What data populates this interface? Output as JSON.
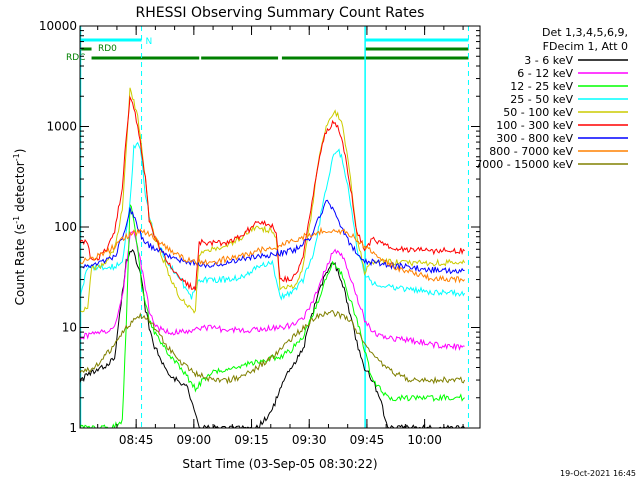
{
  "chart_data": {
    "type": "line",
    "title": "RHESSI Observing Summary Count Rates",
    "xlabel": "Start Time (03-Sep-05 08:30:22)",
    "ylabel": "Count Rate (s⁻¹ detector⁻¹)",
    "ylabel_main": "Count Rate (s",
    "ylabel_sup1": "-1",
    "ylabel_mid": " detector",
    "ylabel_sup2": "-1",
    "ylabel_end": ")",
    "yscale": "log",
    "ylim": [
      1,
      10000
    ],
    "xlim_minutes": [
      0,
      104
    ],
    "x_unit": "minutes after 08:30:22",
    "x_ticks": [
      {
        "label": "08:45",
        "value": 14.6
      },
      {
        "label": "09:00",
        "value": 29.6
      },
      {
        "label": "09:15",
        "value": 44.6
      },
      {
        "label": "09:30",
        "value": 59.6
      },
      {
        "label": "09:45",
        "value": 74.6
      },
      {
        "label": "10:00",
        "value": 89.6
      }
    ],
    "y_ticks": [
      {
        "label": "1",
        "value": 1
      },
      {
        "label": "10",
        "value": 10
      },
      {
        "label": "100",
        "value": 100
      },
      {
        "label": "1000",
        "value": 1000
      },
      {
        "label": "10000",
        "value": 10000
      }
    ],
    "legend_header": [
      "Det 1,3,4,5,6,9,",
      "FDecim 1, Att 0"
    ],
    "legend_position": "right",
    "timestamp": "19-Oct-2021 16:45",
    "flags": [
      {
        "name": "N",
        "color": "#00ffff",
        "segments": [
          [
            0,
            16
          ],
          [
            74,
            101
          ]
        ]
      },
      {
        "name": "RD0",
        "color": "#008000",
        "segments": [
          [
            0,
            3
          ],
          [
            74,
            101
          ]
        ]
      },
      {
        "name": "RDC",
        "color": "#008000",
        "segments": [
          [
            3,
            31
          ],
          [
            31.5,
            51.5
          ],
          [
            52.5,
            74
          ],
          [
            74,
            101
          ]
        ]
      }
    ],
    "vlines_solid": [
      0,
      74
    ],
    "vlines_dashed": [
      16,
      101
    ],
    "series": [
      {
        "name": "3 - 6 keV",
        "color": "#000000",
        "x": [
          0,
          3,
          6,
          9,
          12,
          13,
          14,
          15,
          16,
          17,
          19,
          22,
          25,
          28,
          31,
          34,
          38,
          42,
          46,
          50,
          52,
          55,
          58,
          60,
          62,
          64,
          66,
          68,
          70,
          72,
          74,
          76,
          78,
          80,
          84,
          88,
          92,
          96,
          100
        ],
        "y": [
          3,
          3.5,
          4,
          5,
          45,
          60,
          55,
          40,
          30,
          15,
          7,
          4,
          3,
          2.5,
          1,
          1,
          1,
          1,
          1,
          1.5,
          2.5,
          4,
          6,
          12,
          22,
          35,
          45,
          30,
          15,
          7,
          4,
          3,
          2,
          1,
          1,
          1,
          1,
          1,
          1
        ]
      },
      {
        "name": "6 - 12 keV",
        "color": "#ff00ff",
        "x": [
          0,
          3,
          6,
          9,
          11,
          13,
          14,
          16,
          18,
          20,
          24,
          28,
          30,
          34,
          38,
          42,
          46,
          50,
          52,
          55,
          58,
          61,
          64,
          66,
          68,
          70,
          72,
          74,
          76,
          80,
          85,
          90,
          95,
          100
        ],
        "y": [
          8,
          8.5,
          9,
          10,
          20,
          85,
          90,
          40,
          15,
          10,
          9,
          9,
          10,
          10,
          9.5,
          9.5,
          9.5,
          10,
          10,
          10.5,
          12,
          20,
          40,
          60,
          55,
          35,
          20,
          12,
          9,
          8,
          7.5,
          7,
          6.5,
          6.5
        ]
      },
      {
        "name": "12 - 25 keV",
        "color": "#00ff00",
        "x": [
          0,
          8,
          10,
          11,
          12,
          13,
          14,
          15,
          16,
          18,
          20,
          24,
          30,
          34,
          40,
          46,
          50,
          52,
          55,
          58,
          61,
          64,
          66,
          68,
          70,
          72,
          74,
          76,
          80,
          85,
          90,
          95,
          100
        ],
        "y": [
          1,
          1,
          1.1,
          1.2,
          10,
          170,
          120,
          60,
          25,
          12,
          8,
          5,
          2.5,
          3.5,
          4,
          4.5,
          5,
          5,
          6,
          8,
          15,
          30,
          45,
          35,
          20,
          12,
          6,
          3,
          2,
          2,
          2,
          2,
          2
        ]
      },
      {
        "name": "25 - 50 keV",
        "color": "#00ffff",
        "x": [
          0,
          2,
          4,
          6,
          9,
          11,
          13,
          14,
          15,
          16,
          17,
          19,
          22,
          26,
          29,
          31,
          34,
          38,
          42,
          46,
          50,
          52,
          55,
          58,
          61,
          64,
          66,
          67,
          68,
          70,
          72,
          74,
          76,
          80,
          85,
          90,
          95,
          100
        ],
        "y": [
          20,
          40,
          40,
          40,
          40,
          45,
          180,
          600,
          700,
          500,
          200,
          90,
          50,
          30,
          20,
          30,
          30,
          30,
          32,
          40,
          45,
          20,
          22,
          30,
          60,
          250,
          550,
          600,
          500,
          220,
          60,
          35,
          28,
          26,
          24,
          23,
          22,
          22
        ]
      },
      {
        "name": "50 - 100 keV",
        "color": "#cccc00",
        "x": [
          0,
          2,
          3,
          5,
          7,
          9,
          11,
          12,
          13,
          14,
          15,
          17,
          18,
          20,
          23,
          26,
          29,
          30,
          31,
          34,
          38,
          40,
          44,
          46,
          50,
          51,
          52,
          54,
          56,
          58,
          60,
          62,
          64,
          66,
          68,
          70,
          72,
          74,
          76,
          80,
          85,
          90,
          95,
          100
        ],
        "y": [
          15,
          15,
          40,
          40,
          45,
          60,
          150,
          600,
          2400,
          1800,
          1200,
          300,
          120,
          70,
          35,
          20,
          15,
          15,
          55,
          60,
          62,
          70,
          90,
          100,
          90,
          80,
          25,
          25,
          26,
          40,
          120,
          450,
          1000,
          1400,
          1200,
          400,
          80,
          35,
          45,
          45,
          44,
          44,
          44,
          44
        ]
      },
      {
        "name": "100 - 300 keV",
        "color": "#ff0000",
        "x": [
          0,
          2,
          3,
          5,
          7,
          9,
          11,
          12,
          13,
          14,
          15,
          17,
          18,
          20,
          23,
          26,
          29,
          30,
          31,
          34,
          38,
          40,
          44,
          46,
          48,
          50,
          51,
          52,
          54,
          56,
          58,
          60,
          62,
          64,
          66,
          67,
          68,
          70,
          72,
          74,
          76,
          80,
          85,
          90,
          95,
          100
        ],
        "y": [
          70,
          70,
          45,
          50,
          60,
          90,
          250,
          800,
          1900,
          1500,
          1000,
          300,
          120,
          70,
          45,
          30,
          25,
          25,
          70,
          70,
          70,
          75,
          95,
          110,
          110,
          100,
          90,
          30,
          30,
          32,
          50,
          150,
          450,
          900,
          1100,
          1000,
          800,
          300,
          90,
          60,
          75,
          65,
          60,
          58,
          58,
          58
        ]
      },
      {
        "name": "300 - 800 keV",
        "color": "#0000ff",
        "x": [
          0,
          3,
          6,
          9,
          11,
          13,
          14,
          15,
          16,
          18,
          20,
          24,
          28,
          32,
          36,
          40,
          44,
          48,
          52,
          56,
          60,
          62,
          64,
          66,
          68,
          70,
          72,
          74,
          76,
          80,
          85,
          90,
          95,
          100
        ],
        "y": [
          40,
          40,
          45,
          50,
          80,
          150,
          130,
          100,
          80,
          65,
          60,
          50,
          45,
          42,
          43,
          45,
          50,
          52,
          55,
          60,
          80,
          120,
          180,
          150,
          100,
          70,
          55,
          45,
          45,
          42,
          40,
          38,
          37,
          37
        ]
      },
      {
        "name": "800 - 7000 keV",
        "color": "#ff8000",
        "x": [
          0,
          4,
          8,
          12,
          15,
          18,
          22,
          26,
          30,
          34,
          38,
          42,
          46,
          50,
          54,
          58,
          62,
          66,
          70,
          74,
          78,
          82,
          86,
          90,
          95,
          100
        ],
        "y": [
          45,
          50,
          60,
          80,
          90,
          85,
          65,
          50,
          45,
          45,
          48,
          52,
          58,
          62,
          70,
          80,
          90,
          95,
          85,
          65,
          50,
          40,
          35,
          32,
          30,
          30
        ]
      },
      {
        "name": "7000 - 15000 keV",
        "color": "#808000",
        "x": [
          0,
          4,
          8,
          12,
          15,
          18,
          22,
          26,
          30,
          34,
          38,
          42,
          46,
          50,
          54,
          58,
          62,
          66,
          70,
          74,
          78,
          82,
          86,
          90,
          95,
          100
        ],
        "y": [
          3.5,
          4,
          6,
          10,
          13,
          12,
          7,
          4.5,
          3.5,
          3,
          3,
          3.2,
          4,
          5,
          7,
          10,
          13,
          14,
          12,
          7,
          4.5,
          3.5,
          3,
          3,
          3,
          3
        ]
      }
    ]
  }
}
